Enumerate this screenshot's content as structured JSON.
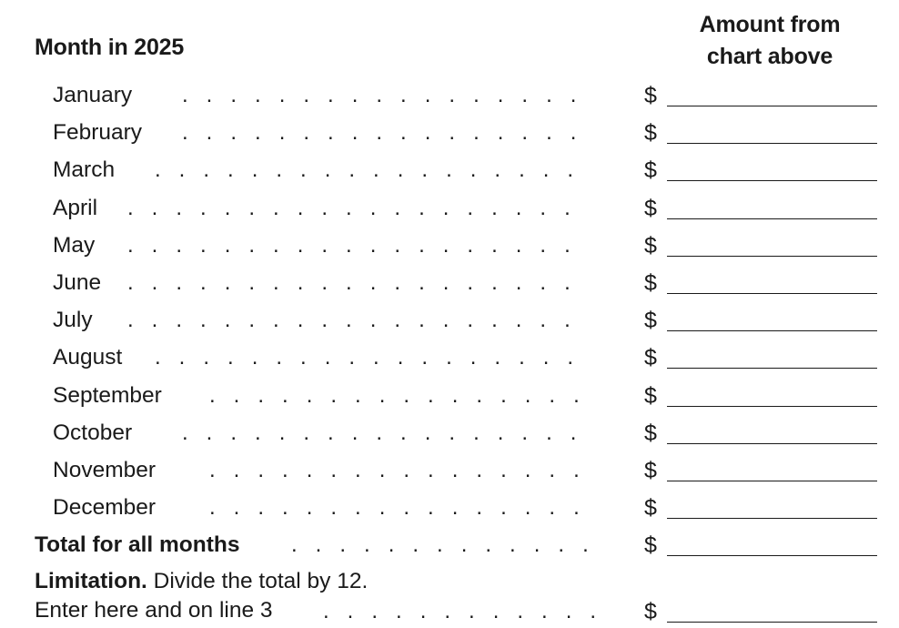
{
  "header": {
    "month_column": "Month in 2025",
    "amount_column_line1": "Amount from",
    "amount_column_line2": "chart above"
  },
  "currency_symbol": "$",
  "months": [
    {
      "label": "January"
    },
    {
      "label": "February"
    },
    {
      "label": "March"
    },
    {
      "label": "April"
    },
    {
      "label": "May"
    },
    {
      "label": "June"
    },
    {
      "label": "July"
    },
    {
      "label": "August"
    },
    {
      "label": "September"
    },
    {
      "label": "October"
    },
    {
      "label": "November"
    },
    {
      "label": "December"
    }
  ],
  "total": {
    "label": "Total for all months"
  },
  "limitation": {
    "heading": "Limitation.",
    "instruction": " Divide the total by 12.",
    "line2": "Enter here and on line 3"
  }
}
